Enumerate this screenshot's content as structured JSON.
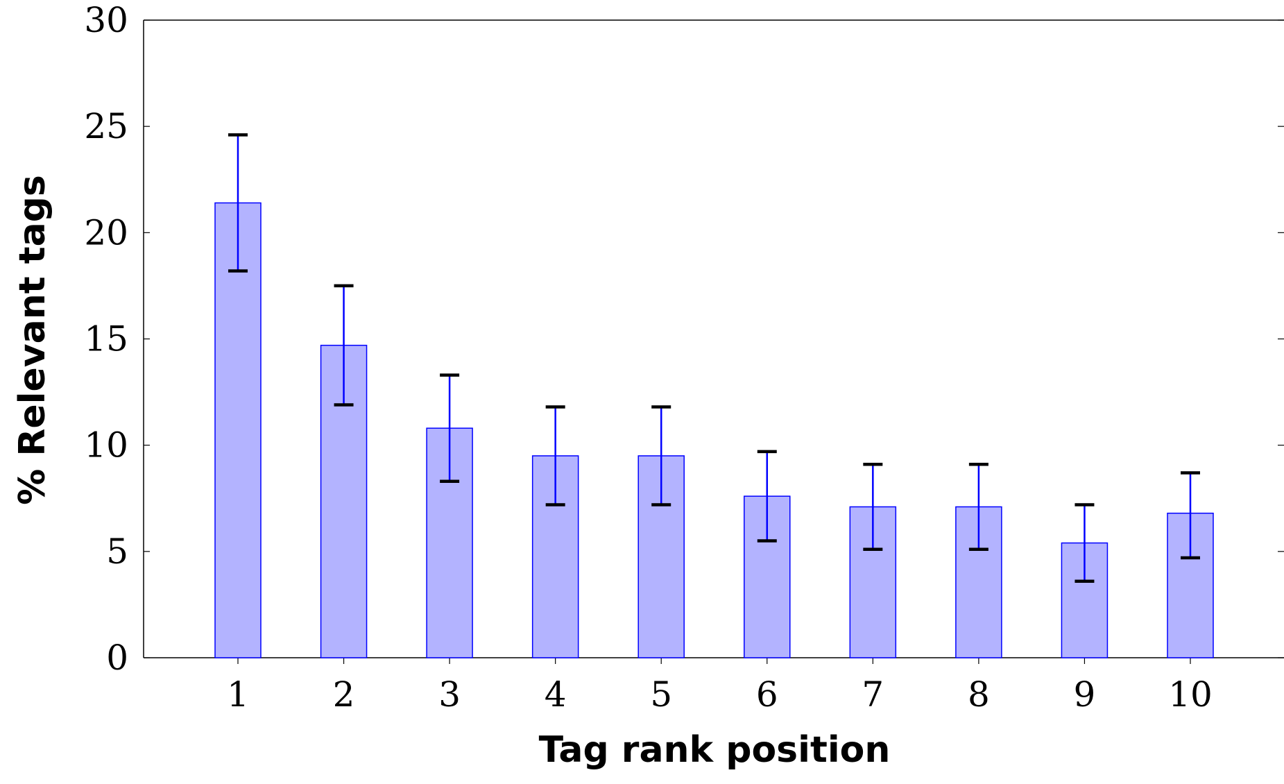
{
  "chart_data": {
    "type": "bar",
    "xlabel": "Tag rank position",
    "ylabel": "% Relevant tags",
    "categories": [
      "1",
      "2",
      "3",
      "4",
      "5",
      "6",
      "7",
      "8",
      "9",
      "10"
    ],
    "values": [
      21.4,
      14.7,
      10.8,
      9.5,
      9.5,
      7.6,
      7.1,
      7.1,
      5.4,
      6.8
    ],
    "error_upper": [
      24.6,
      17.5,
      13.3,
      11.8,
      11.8,
      9.7,
      9.1,
      9.1,
      7.2,
      8.7
    ],
    "error_lower": [
      18.2,
      11.9,
      8.3,
      7.2,
      7.2,
      5.5,
      5.1,
      5.1,
      3.6,
      4.7
    ],
    "ylim": [
      0,
      30
    ],
    "yticks": [
      "0",
      "5",
      "10",
      "15",
      "20",
      "25",
      "30"
    ],
    "grid": false,
    "legend": "none",
    "colors": {
      "bar_fill": "#b3b3ff",
      "bar_stroke": "#0000ff",
      "error_stem": "#0000ff",
      "error_cap": "#000000",
      "axis": "#000000"
    }
  }
}
